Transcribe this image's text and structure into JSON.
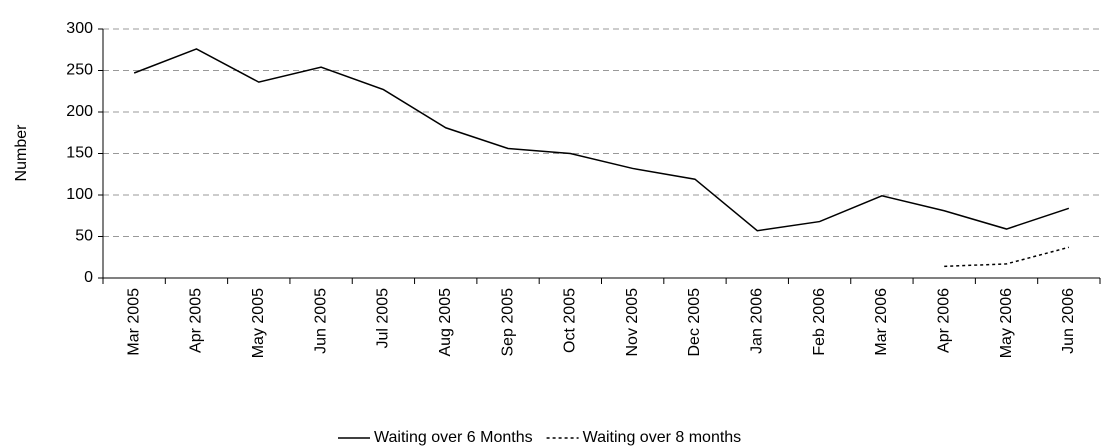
{
  "chart_data": {
    "type": "line",
    "y_label": "Number",
    "categories": [
      "Mar 2005",
      "Apr 2005",
      "May 2005",
      "Jun 2005",
      "Jul 2005",
      "Aug 2005",
      "Sep 2005",
      "Oct 2005",
      "Nov 2005",
      "Dec 2005",
      "Jan 2006",
      "Feb 2006",
      "Mar 2006",
      "Apr 2006",
      "May 2006",
      "Jun 2006"
    ],
    "series": [
      {
        "name": "Waiting over 6 Months",
        "color": "#000000",
        "style": "solid",
        "values": [
          247,
          276,
          236,
          254,
          227,
          181,
          156,
          150,
          132,
          119,
          57,
          68,
          99,
          81,
          59,
          84
        ]
      },
      {
        "name": "Waiting over 8 months",
        "color": "#000000",
        "style": "dotted",
        "values": [
          null,
          null,
          null,
          null,
          null,
          null,
          null,
          null,
          null,
          null,
          null,
          null,
          null,
          14,
          17,
          37
        ]
      }
    ],
    "ylim": [
      0,
      300
    ],
    "yticks": [
      0,
      50,
      100,
      150,
      200,
      250,
      300
    ],
    "grid": true,
    "legend": "bottom"
  }
}
